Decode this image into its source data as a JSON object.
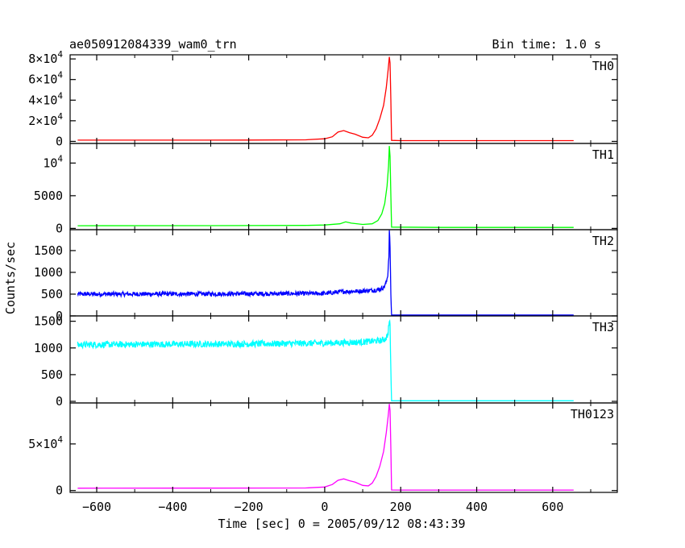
{
  "chart_data": {
    "type": "line",
    "title": "ae050912084339_wam0_trn",
    "subtitle": "Bin time: 1.0 s",
    "xlabel": "Time [sec] 0 = 2005/09/12 08:43:39",
    "ylabel": "Counts/sec",
    "xlim": [
      -670,
      770
    ],
    "x_ticks": [
      -600,
      -400,
      -200,
      0,
      200,
      400,
      600
    ],
    "x_tick_labels": [
      "−600",
      "−400",
      "−200",
      "0",
      "200",
      "400",
      "600"
    ],
    "panels": [
      {
        "name": "TH0",
        "color": "#ff0000",
        "ylim": [
          -2000,
          84000
        ],
        "y_ticks": [
          0,
          20000,
          40000,
          60000,
          80000
        ],
        "y_tick_labels": [
          {
            "text": "0"
          },
          {
            "text": "2×10",
            "exp": "4"
          },
          {
            "text": "4×10",
            "exp": "4"
          },
          {
            "text": "6×10",
            "exp": "4"
          },
          {
            "text": "8×10",
            "exp": "4"
          }
        ],
        "points": [
          [
            -650,
            1200
          ],
          [
            -400,
            1200
          ],
          [
            -200,
            1300
          ],
          [
            -50,
            1500
          ],
          [
            0,
            2500
          ],
          [
            20,
            4500
          ],
          [
            35,
            9000
          ],
          [
            50,
            10500
          ],
          [
            65,
            8500
          ],
          [
            80,
            7000
          ],
          [
            100,
            4000
          ],
          [
            115,
            3500
          ],
          [
            125,
            6000
          ],
          [
            135,
            12000
          ],
          [
            145,
            22000
          ],
          [
            155,
            35000
          ],
          [
            162,
            52000
          ],
          [
            167,
            70000
          ],
          [
            170,
            82000
          ],
          [
            172,
            76000
          ],
          [
            174,
            40000
          ],
          [
            176,
            1000
          ],
          [
            200,
            700
          ],
          [
            400,
            700
          ],
          [
            655,
            700
          ]
        ]
      },
      {
        "name": "TH1",
        "color": "#00ff00",
        "ylim": [
          -200,
          13000
        ],
        "y_ticks": [
          0,
          5000,
          10000
        ],
        "y_tick_labels": [
          {
            "text": "0"
          },
          {
            "text": "5000"
          },
          {
            "text": "10",
            "exp": "4"
          }
        ],
        "points": [
          [
            -650,
            400
          ],
          [
            -300,
            420
          ],
          [
            -50,
            450
          ],
          [
            0,
            520
          ],
          [
            40,
            700
          ],
          [
            55,
            1000
          ],
          [
            70,
            800
          ],
          [
            100,
            600
          ],
          [
            125,
            700
          ],
          [
            140,
            1200
          ],
          [
            150,
            2200
          ],
          [
            158,
            3800
          ],
          [
            164,
            6500
          ],
          [
            168,
            9500
          ],
          [
            170,
            12600
          ],
          [
            172,
            11000
          ],
          [
            174,
            5000
          ],
          [
            176,
            200
          ],
          [
            300,
            150
          ],
          [
            655,
            150
          ]
        ]
      },
      {
        "name": "TH2",
        "color": "#0000ff",
        "ylim": [
          0,
          1980
        ],
        "y_ticks": [
          0,
          500,
          1000,
          1500
        ],
        "y_tick_labels": [
          {
            "text": "0"
          },
          {
            "text": "500"
          },
          {
            "text": "1000"
          },
          {
            "text": "1500"
          }
        ],
        "points": [
          [
            -650,
            500
          ],
          [
            -300,
            505
          ],
          [
            0,
            515
          ],
          [
            50,
            560
          ],
          [
            100,
            570
          ],
          [
            140,
            600
          ],
          [
            155,
            650
          ],
          [
            162,
            760
          ],
          [
            166,
            950
          ],
          [
            169,
            1400
          ],
          [
            170,
            1950
          ],
          [
            172,
            1600
          ],
          [
            174,
            500
          ],
          [
            176,
            20
          ],
          [
            655,
            20
          ]
        ],
        "noise": 50
      },
      {
        "name": "TH3",
        "color": "#00ffff",
        "ylim": [
          -30,
          1600
        ],
        "y_ticks": [
          0,
          500,
          1000,
          1500
        ],
        "y_tick_labels": [
          {
            "text": "0"
          },
          {
            "text": "500"
          },
          {
            "text": "1000"
          },
          {
            "text": "1500"
          }
        ],
        "points": [
          [
            -650,
            1060
          ],
          [
            -400,
            1070
          ],
          [
            -200,
            1075
          ],
          [
            0,
            1090
          ],
          [
            100,
            1110
          ],
          [
            150,
            1140
          ],
          [
            160,
            1170
          ],
          [
            166,
            1250
          ],
          [
            170,
            1500
          ],
          [
            172,
            1400
          ],
          [
            174,
            600
          ],
          [
            176,
            10
          ],
          [
            655,
            10
          ]
        ],
        "noise": 60
      },
      {
        "name": "TH0123",
        "color": "#ff00ff",
        "ylim": [
          -2000,
          94000
        ],
        "y_ticks": [
          0,
          50000
        ],
        "y_tick_labels": [
          {
            "text": "0"
          },
          {
            "text": "5×10",
            "exp": "4"
          }
        ],
        "points": [
          [
            -650,
            2500
          ],
          [
            -300,
            2600
          ],
          [
            -50,
            2800
          ],
          [
            0,
            3800
          ],
          [
            20,
            6500
          ],
          [
            35,
            11000
          ],
          [
            50,
            12500
          ],
          [
            65,
            10500
          ],
          [
            80,
            9000
          ],
          [
            100,
            5500
          ],
          [
            115,
            5000
          ],
          [
            125,
            8000
          ],
          [
            135,
            15000
          ],
          [
            145,
            26000
          ],
          [
            155,
            42000
          ],
          [
            162,
            62000
          ],
          [
            167,
            80000
          ],
          [
            170,
            93000
          ],
          [
            172,
            86000
          ],
          [
            174,
            45000
          ],
          [
            176,
            600
          ],
          [
            200,
            500
          ],
          [
            400,
            500
          ],
          [
            655,
            500
          ]
        ]
      }
    ]
  }
}
